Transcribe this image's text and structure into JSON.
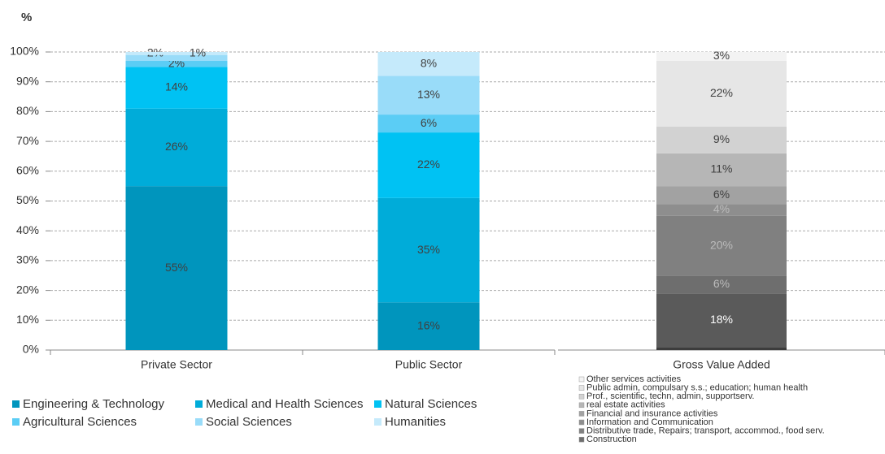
{
  "chart_data": [
    {
      "type": "bar",
      "stacked": true,
      "y_axis_label": "%",
      "categories": [
        "Private Sector",
        "Public Sector"
      ],
      "series": [
        {
          "name": "Engineering & Technology",
          "color": "#0095bd",
          "values": [
            55,
            16
          ],
          "value_labels": [
            "55%",
            "16%"
          ]
        },
        {
          "name": "Medical and Health Sciences",
          "color": "#00acd9",
          "values": [
            26,
            35
          ],
          "value_labels": [
            "26%",
            "35%"
          ]
        },
        {
          "name": "Natural Sciences",
          "color": "#00c2f3",
          "values": [
            14,
            22
          ],
          "value_labels": [
            "14%",
            "22%"
          ]
        },
        {
          "name": "Agricultural Sciences",
          "color": "#5bcdf5",
          "values": [
            2,
            6
          ],
          "value_labels": [
            "2%",
            "6%"
          ]
        },
        {
          "name": "Social Sciences",
          "color": "#99dcf9",
          "values": [
            2,
            13
          ],
          "value_labels": [
            "2%",
            "13%"
          ]
        },
        {
          "name": "Humanities",
          "color": "#c5eafb",
          "values": [
            1,
            8
          ],
          "value_labels": [
            "1%",
            "8%"
          ]
        }
      ],
      "ylim": [
        0,
        100
      ],
      "yticks": [
        {
          "value": 0,
          "label": "0%"
        },
        {
          "value": 10,
          "label": "10%"
        },
        {
          "value": 20,
          "label": "20%"
        },
        {
          "value": 30,
          "label": "30%"
        },
        {
          "value": 40,
          "label": "40%"
        },
        {
          "value": 50,
          "label": "50%"
        },
        {
          "value": 60,
          "label": "60%"
        },
        {
          "value": 70,
          "label": "70%"
        },
        {
          "value": 80,
          "label": "80%"
        },
        {
          "value": 90,
          "label": "90%"
        },
        {
          "value": 100,
          "label": "100%"
        }
      ],
      "grid": true
    },
    {
      "type": "bar",
      "stacked": true,
      "categories": [
        "Gross Value Added"
      ],
      "series": [
        {
          "color": "#3c3c3c",
          "values": [
            1
          ]
        },
        {
          "color": "#5a5a5a",
          "values": [
            18
          ],
          "value_labels": [
            "18%"
          ]
        },
        {
          "name": "Construction",
          "color": "#6e6e6e",
          "values": [
            6
          ],
          "value_labels": [
            "6%"
          ]
        },
        {
          "name": "Distributive trade, Repairs; transport, accommod., food serv.",
          "color": "#808080",
          "values": [
            20
          ],
          "value_labels": [
            "20%"
          ]
        },
        {
          "name": "Information and Communication",
          "color": "#8e8e8e",
          "values": [
            4
          ],
          "value_labels": [
            "4%"
          ]
        },
        {
          "name": "Financial and insurance activities",
          "color": "#a2a2a2",
          "values": [
            6
          ],
          "value_labels": [
            "6%"
          ]
        },
        {
          "name": "real estate activities",
          "color": "#b6b6b6",
          "values": [
            11
          ],
          "value_labels": [
            "11%"
          ]
        },
        {
          "name": "Prof., scientific, techn, admin, supportserv.",
          "color": "#d2d2d2",
          "values": [
            9
          ],
          "value_labels": [
            "9%"
          ]
        },
        {
          "name": "Public admin, compulsary s.s.; education; human health",
          "color": "#e6e6e6",
          "values": [
            22
          ],
          "value_labels": [
            "22%"
          ]
        },
        {
          "name": "Other services activities",
          "color": "#f3f3f3",
          "values": [
            3
          ],
          "value_labels": [
            "3%"
          ]
        }
      ],
      "ylim": [
        0,
        100
      ]
    }
  ]
}
